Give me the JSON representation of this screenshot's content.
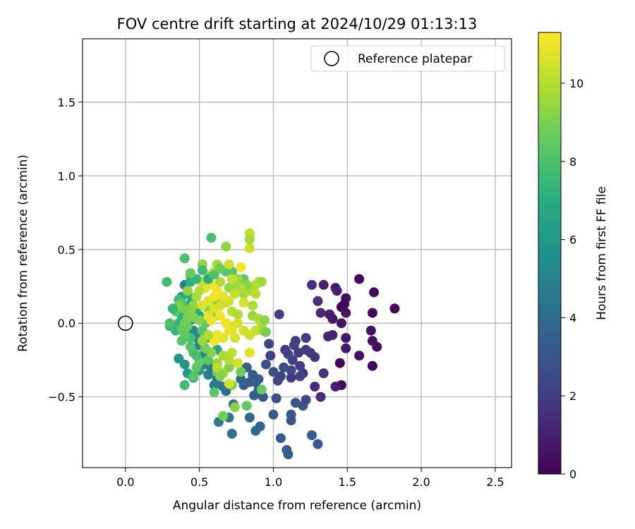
{
  "chart_data": {
    "type": "scatter",
    "title": "FOV centre drift starting at 2024/10/29 01:13:13",
    "xlabel": "Angular distance from reference (arcmin)",
    "ylabel": "Rotation from reference (arcmin)",
    "xlim": [
      -0.29,
      2.61
    ],
    "ylim": [
      -0.98,
      1.93
    ],
    "xticks": [
      {
        "v": 0.0,
        "label": "0.0"
      },
      {
        "v": 0.5,
        "label": "0.5"
      },
      {
        "v": 1.0,
        "label": "1.0"
      },
      {
        "v": 1.5,
        "label": "1.5"
      },
      {
        "v": 2.0,
        "label": "2.0"
      },
      {
        "v": 2.5,
        "label": "2.5"
      }
    ],
    "yticks": [
      {
        "v": -0.5,
        "label": "−0.5"
      },
      {
        "v": 0.0,
        "label": "0.0"
      },
      {
        "v": 0.5,
        "label": "0.5"
      },
      {
        "v": 1.0,
        "label": "1.0"
      },
      {
        "v": 1.5,
        "label": "1.5"
      }
    ],
    "grid": true,
    "legend": {
      "position": "top-right",
      "entries": [
        {
          "label": "Reference platepar",
          "marker": "open-circle"
        }
      ]
    },
    "reference_point": {
      "x": 0.0,
      "y": 0.0
    },
    "colorbar": {
      "label": "Hours from first FF file",
      "colormap": "viridis",
      "range": [
        0,
        11.3
      ],
      "ticks": [
        {
          "v": 0,
          "label": "0"
        },
        {
          "v": 2,
          "label": "2"
        },
        {
          "v": 4,
          "label": "4"
        },
        {
          "v": 6,
          "label": "6"
        },
        {
          "v": 8,
          "label": "8"
        },
        {
          "v": 10,
          "label": "10"
        }
      ]
    },
    "points": [
      [
        1.58,
        0.3,
        0.2
      ],
      [
        1.82,
        0.1,
        0.2
      ],
      [
        1.68,
        0.21,
        0.4
      ],
      [
        1.67,
        0.07,
        0.3
      ],
      [
        1.7,
        -0.16,
        0.4
      ],
      [
        1.67,
        -0.12,
        0.5
      ],
      [
        1.66,
        -0.05,
        0.6
      ],
      [
        1.67,
        -0.29,
        0.1
      ],
      [
        1.58,
        -0.22,
        0.5
      ],
      [
        1.49,
        0.17,
        0.4
      ],
      [
        1.48,
        0.13,
        0.3
      ],
      [
        1.46,
        0.11,
        0.2
      ],
      [
        1.49,
        0.07,
        0.6
      ],
      [
        1.46,
        0.0,
        0.5
      ],
      [
        1.49,
        -0.1,
        0.7
      ],
      [
        1.49,
        -0.17,
        0.8
      ],
      [
        1.45,
        -0.27,
        0.1
      ],
      [
        1.46,
        -0.42,
        0.3
      ],
      [
        1.42,
        -0.43,
        0.9
      ],
      [
        1.42,
        0.24,
        0.8
      ],
      [
        1.43,
        0.22,
        1.0
      ],
      [
        1.4,
        0.03,
        0.7
      ],
      [
        1.4,
        -0.08,
        1.1
      ],
      [
        1.38,
        0.06,
        0.9
      ],
      [
        1.37,
        -0.09,
        1.2
      ],
      [
        1.34,
        0.26,
        1.1
      ],
      [
        1.32,
        0.07,
        1.3
      ],
      [
        1.3,
        0.15,
        1.4
      ],
      [
        1.26,
        0.26,
        1.5
      ],
      [
        1.34,
        -0.34,
        1.6
      ],
      [
        1.32,
        -0.5,
        1.5
      ],
      [
        1.28,
        -0.43,
        1.4
      ],
      [
        1.28,
        -0.23,
        1.7
      ],
      [
        1.25,
        -0.2,
        1.8
      ],
      [
        1.22,
        -0.18,
        1.9
      ],
      [
        1.22,
        -0.1,
        2.0
      ],
      [
        1.2,
        -0.34,
        1.8
      ],
      [
        1.18,
        -0.29,
        2.1
      ],
      [
        1.18,
        -0.36,
        2.2
      ],
      [
        1.17,
        -0.2,
        1.9
      ],
      [
        1.15,
        -0.12,
        1.7
      ],
      [
        1.14,
        -0.15,
        2.3
      ],
      [
        1.13,
        -0.25,
        2.1
      ],
      [
        1.12,
        -0.32,
        2.4
      ],
      [
        1.12,
        -0.37,
        2.0
      ],
      [
        1.1,
        -0.21,
        2.2
      ],
      [
        1.08,
        -0.18,
        2.0
      ],
      [
        1.07,
        -0.3,
        2.5
      ],
      [
        1.05,
        -0.36,
        2.3
      ],
      [
        1.04,
        0.06,
        2.0
      ],
      [
        1.03,
        -0.39,
        2.4
      ],
      [
        1.0,
        -0.33,
        2.6
      ],
      [
        0.98,
        -0.22,
        2.2
      ],
      [
        0.97,
        -0.14,
        2.3
      ],
      [
        1.2,
        -0.56,
        2.8
      ],
      [
        1.22,
        -0.52,
        2.6
      ],
      [
        1.15,
        -0.54,
        3.0
      ],
      [
        1.12,
        -0.62,
        3.1
      ],
      [
        1.12,
        -0.66,
        2.9
      ],
      [
        1.0,
        -0.62,
        3.2
      ],
      [
        1.02,
        -0.51,
        2.7
      ],
      [
        1.3,
        -0.82,
        3.2
      ],
      [
        1.26,
        -0.76,
        3.4
      ],
      [
        1.1,
        -0.89,
        3.6
      ],
      [
        1.09,
        -0.86,
        3.5
      ],
      [
        1.05,
        -0.78,
        3.3
      ],
      [
        0.91,
        -0.7,
        3.6
      ],
      [
        0.88,
        -0.73,
        3.7
      ],
      [
        0.84,
        -0.64,
        3.8
      ],
      [
        0.93,
        -0.5,
        3.0
      ],
      [
        0.9,
        -0.45,
        2.9
      ],
      [
        0.88,
        -0.4,
        3.1
      ],
      [
        0.86,
        -0.35,
        3.2
      ],
      [
        0.84,
        -0.4,
        3.4
      ],
      [
        0.82,
        -0.3,
        3.3
      ],
      [
        0.8,
        -0.42,
        3.5
      ],
      [
        0.78,
        -0.38,
        3.6
      ],
      [
        0.9,
        -0.38,
        3.3
      ],
      [
        0.87,
        -0.49,
        3.5
      ],
      [
        0.95,
        -0.28,
        2.8
      ],
      [
        0.72,
        -0.75,
        4.2
      ],
      [
        0.73,
        -0.55,
        4.0
      ],
      [
        0.7,
        -0.64,
        4.4
      ],
      [
        0.63,
        -0.67,
        4.6
      ],
      [
        0.68,
        -0.46,
        4.1
      ],
      [
        0.66,
        -0.43,
        4.3
      ],
      [
        0.62,
        -0.38,
        4.5
      ],
      [
        0.6,
        -0.42,
        4.7
      ],
      [
        0.58,
        -0.3,
        4.4
      ],
      [
        0.56,
        -0.35,
        4.8
      ],
      [
        0.54,
        -0.28,
        5.0
      ],
      [
        0.52,
        -0.22,
        4.9
      ],
      [
        0.5,
        -0.15,
        5.1
      ],
      [
        0.48,
        -0.1,
        5.2
      ],
      [
        0.46,
        -0.05,
        5.3
      ],
      [
        0.44,
        0.02,
        5.4
      ],
      [
        0.42,
        0.08,
        5.5
      ],
      [
        0.4,
        0.12,
        5.6
      ],
      [
        0.38,
        0.18,
        5.7
      ],
      [
        0.4,
        0.26,
        5.3
      ],
      [
        0.36,
        -0.24,
        5.8
      ],
      [
        0.4,
        -0.28,
        6.0
      ],
      [
        0.42,
        -0.34,
        6.1
      ],
      [
        0.46,
        -0.37,
        6.3
      ],
      [
        0.5,
        -0.32,
        6.2
      ],
      [
        0.55,
        -0.25,
        6.4
      ],
      [
        0.58,
        -0.2,
        6.5
      ],
      [
        0.62,
        -0.18,
        6.6
      ],
      [
        0.55,
        -0.1,
        6.8
      ],
      [
        0.5,
        0.05,
        6.7
      ],
      [
        0.48,
        0.1,
        6.9
      ],
      [
        0.45,
        0.15,
        7.0
      ],
      [
        0.42,
        0.2,
        7.1
      ],
      [
        0.38,
        0.05,
        7.2
      ],
      [
        0.36,
        0.0,
        7.3
      ],
      [
        0.34,
        -0.05,
        7.4
      ],
      [
        0.32,
        -0.02,
        7.5
      ],
      [
        0.3,
        -0.02,
        7.6
      ],
      [
        0.36,
        0.16,
        7.7
      ],
      [
        0.28,
        0.28,
        7.8
      ],
      [
        0.4,
        0.44,
        8.0
      ],
      [
        0.44,
        0.32,
        8.1
      ],
      [
        0.58,
        0.58,
        7.9
      ],
      [
        0.68,
        0.35,
        8.2
      ],
      [
        0.72,
        0.35,
        8.3
      ],
      [
        0.8,
        0.3,
        8.4
      ],
      [
        0.82,
        -0.56,
        8.5
      ],
      [
        0.74,
        -0.57,
        9.2
      ],
      [
        0.72,
        -0.42,
        9.0
      ],
      [
        0.66,
        -0.63,
        8.8
      ],
      [
        0.6,
        -0.47,
        8.3
      ],
      [
        0.4,
        -0.42,
        7.8
      ],
      [
        0.92,
        -0.45,
        8.6
      ],
      [
        0.78,
        -0.33,
        8.7
      ],
      [
        0.7,
        -0.3,
        9.1
      ],
      [
        0.62,
        -0.33,
        8.9
      ],
      [
        0.56,
        -0.25,
        8.2
      ],
      [
        0.46,
        -0.2,
        8.0
      ],
      [
        0.44,
        -0.1,
        7.9
      ],
      [
        0.52,
        -0.05,
        8.3
      ],
      [
        0.54,
        0.0,
        8.5
      ],
      [
        0.6,
        0.05,
        8.7
      ],
      [
        0.56,
        0.1,
        8.9
      ],
      [
        0.62,
        0.14,
        9.0
      ],
      [
        0.66,
        0.18,
        9.2
      ],
      [
        0.7,
        0.24,
        9.4
      ],
      [
        0.74,
        0.26,
        9.5
      ],
      [
        0.76,
        0.3,
        9.6
      ],
      [
        0.8,
        0.2,
        9.7
      ],
      [
        0.84,
        0.22,
        9.8
      ],
      [
        0.88,
        0.26,
        9.9
      ],
      [
        0.9,
        0.28,
        10.0
      ],
      [
        0.92,
        0.28,
        9.6
      ],
      [
        0.86,
        0.05,
        9.5
      ],
      [
        0.9,
        0.03,
        9.8
      ],
      [
        0.92,
        0.0,
        10.1
      ],
      [
        0.88,
        -0.05,
        10.3
      ],
      [
        0.84,
        -0.08,
        10.4
      ],
      [
        0.8,
        -0.05,
        10.5
      ],
      [
        0.76,
        0.0,
        10.6
      ],
      [
        0.72,
        -0.02,
        10.7
      ],
      [
        0.7,
        -0.05,
        10.8
      ],
      [
        0.66,
        -0.1,
        10.9
      ],
      [
        0.62,
        -0.08,
        11.0
      ],
      [
        0.6,
        -0.12,
        11.1
      ],
      [
        0.58,
        0.02,
        11.2
      ],
      [
        0.56,
        0.05,
        10.9
      ],
      [
        0.6,
        0.1,
        10.7
      ],
      [
        0.64,
        0.12,
        10.5
      ],
      [
        0.68,
        0.14,
        10.3
      ],
      [
        0.72,
        0.08,
        10.1
      ],
      [
        0.76,
        0.06,
        10.0
      ],
      [
        0.84,
        0.61,
        10.2
      ],
      [
        0.84,
        0.51,
        10.4
      ],
      [
        0.84,
        0.57,
        9.7
      ],
      [
        0.82,
        0.26,
        9.2
      ],
      [
        0.78,
        0.24,
        9.8
      ],
      [
        0.74,
        0.2,
        10.2
      ],
      [
        0.7,
        0.15,
        10.6
      ],
      [
        0.66,
        0.18,
        10.8
      ],
      [
        0.62,
        0.22,
        11.0
      ],
      [
        0.58,
        0.26,
        11.2
      ],
      [
        0.54,
        0.24,
        10.9
      ],
      [
        0.52,
        0.28,
        10.3
      ],
      [
        0.5,
        0.22,
        10.0
      ],
      [
        0.48,
        0.18,
        9.8
      ],
      [
        0.46,
        0.12,
        9.5
      ],
      [
        0.44,
        0.08,
        9.3
      ],
      [
        0.42,
        0.04,
        9.0
      ],
      [
        0.4,
        0.0,
        8.8
      ],
      [
        0.38,
        -0.04,
        8.6
      ],
      [
        0.52,
        0.4,
        9.3
      ],
      [
        0.6,
        0.35,
        10.1
      ],
      [
        0.62,
        0.4,
        9.7
      ],
      [
        0.7,
        0.4,
        10.4
      ],
      [
        0.78,
        0.38,
        11.1
      ],
      [
        0.68,
        0.52,
        9.4
      ],
      [
        0.52,
        0.12,
        10.6
      ],
      [
        0.56,
        0.15,
        10.8
      ],
      [
        0.6,
        0.18,
        11.1
      ],
      [
        0.64,
        0.05,
        11.2
      ],
      [
        0.68,
        0.0,
        11.0
      ],
      [
        0.72,
        -0.05,
        10.9
      ],
      [
        0.74,
        -0.1,
        10.7
      ],
      [
        0.72,
        -0.2,
        10.2
      ],
      [
        0.7,
        -0.25,
        10.0
      ],
      [
        0.66,
        -0.22,
        9.8
      ],
      [
        0.62,
        -0.27,
        9.4
      ],
      [
        0.58,
        -0.2,
        9.2
      ],
      [
        0.54,
        -0.17,
        8.9
      ],
      [
        0.76,
        -0.27,
        10.5
      ],
      [
        0.84,
        -0.2,
        10.8
      ],
      [
        0.7,
        -0.41,
        10.6
      ],
      [
        0.62,
        -0.3,
        10.1
      ],
      [
        0.66,
        -0.34,
        9.6
      ],
      [
        0.64,
        -0.36,
        9.1
      ],
      [
        0.5,
        -0.26,
        8.6
      ],
      [
        0.48,
        -0.3,
        8.4
      ],
      [
        0.46,
        -0.36,
        8.2
      ],
      [
        0.52,
        -0.12,
        9.6
      ],
      [
        0.56,
        -0.08,
        9.9
      ],
      [
        0.5,
        0.02,
        9.2
      ],
      [
        0.46,
        0.04,
        9.0
      ],
      [
        0.42,
        -0.02,
        8.7
      ],
      [
        0.4,
        -0.08,
        8.5
      ],
      [
        0.38,
        -0.12,
        8.3
      ],
      [
        0.44,
        -0.16,
        8.1
      ],
      [
        0.48,
        -0.22,
        7.9
      ],
      [
        0.4,
        0.1,
        8.9
      ],
      [
        0.38,
        0.14,
        8.2
      ],
      [
        0.42,
        0.22,
        9.4
      ],
      [
        0.56,
        0.32,
        9.6
      ],
      [
        0.64,
        0.28,
        9.9
      ],
      [
        0.72,
        0.3,
        10.3
      ],
      [
        0.94,
        0.02,
        9.3
      ],
      [
        0.93,
        -0.05,
        9.7
      ],
      [
        0.95,
        -0.06,
        9.0
      ],
      [
        0.86,
        0.12,
        9.9
      ],
      [
        0.8,
        0.14,
        10.6
      ],
      [
        0.88,
        0.2,
        10.1
      ],
      [
        0.3,
        0.0,
        8.0
      ],
      [
        0.34,
        0.08,
        8.4
      ],
      [
        0.36,
        0.12,
        9.1
      ],
      [
        0.32,
        0.1,
        7.4
      ],
      [
        0.44,
        0.28,
        7.2
      ],
      [
        0.48,
        0.3,
        7.5
      ],
      [
        0.44,
        0.34,
        8.6
      ],
      [
        0.52,
        0.36,
        7.6
      ],
      [
        0.56,
        0.3,
        7.0
      ],
      [
        0.6,
        0.33,
        8.1
      ],
      [
        0.64,
        0.37,
        8.7
      ]
    ]
  }
}
